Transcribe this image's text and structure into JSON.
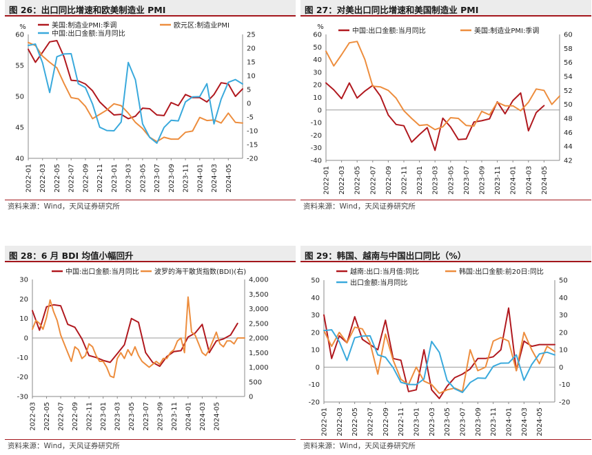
{
  "colors": {
    "dark_red": "#b0181e",
    "orange": "#ed8d3d",
    "blue": "#39a9dc",
    "accent": "#a3151b"
  },
  "panels": [
    {
      "title": "图 26：出口同比增速和欧美制造业 PMI",
      "source": "资料来源：Wind，天风证券研究所"
    },
    {
      "title": "图 27：对美出口同比增速和美国制造业 PMI",
      "source": "资料来源：Wind，天风证券研究所"
    },
    {
      "title": "图 28：6 月 BDI 均值小幅回升",
      "source": "资料来源：Wind，天风证券研究所"
    },
    {
      "title": "图 29：韩国、越南与中国出口同比（%）",
      "source": "资料来源：Wind，天风证券研究所"
    }
  ],
  "chart_data": [
    {
      "type": "line",
      "y_left_unit": "%",
      "y_left_lim": [
        40,
        60
      ],
      "y_left_ticks": [
        "40",
        "45",
        "50",
        "55",
        "60"
      ],
      "y_right_lim": [
        -20,
        25
      ],
      "y_right_ticks": [
        "-20",
        "-15",
        "-10",
        "-5",
        "0",
        "5",
        "10",
        "15",
        "20",
        "25"
      ],
      "x_ticks": [
        "2022-01",
        "2022-03",
        "2022-05",
        "2022-07",
        "2022-09",
        "2022-11",
        "2023-01",
        "2023-03",
        "2023-05",
        "2023-07",
        "2023-09",
        "2023-11",
        "2024-01",
        "2024-03",
        "2024-05"
      ],
      "series": [
        {
          "name": "美国:制造业PMI:季调",
          "color": "dark_red",
          "axis": "left",
          "x": [
            0,
            1,
            2,
            3,
            4,
            5,
            6,
            7,
            8,
            9,
            10,
            11,
            12,
            13,
            14,
            15,
            16,
            17,
            18,
            19,
            20,
            21,
            22,
            23,
            24,
            25,
            26,
            27,
            28,
            29,
            30
          ],
          "y": [
            57.6,
            55.5,
            57.1,
            58.8,
            59.0,
            56.4,
            52.6,
            52.5,
            52.0,
            50.9,
            49.1,
            48.0,
            47.0,
            47.1,
            46.4,
            46.8,
            48.1,
            48.0,
            47.0,
            46.9,
            49.0,
            48.5,
            50.3,
            49.8,
            49.8,
            49.1,
            50.3,
            52.2,
            52.0,
            50.0,
            51.2
          ]
        },
        {
          "name": "欧元区:制造业PMI",
          "color": "orange",
          "axis": "left",
          "x": [
            0,
            1,
            2,
            3,
            4,
            5,
            6,
            7,
            8,
            9,
            10,
            11,
            12,
            13,
            14,
            15,
            16,
            17,
            18,
            19,
            20,
            21,
            22,
            23,
            24,
            25,
            26,
            27,
            28,
            29,
            30
          ],
          "y": [
            58.7,
            58.2,
            56.5,
            55.5,
            54.6,
            52.1,
            49.8,
            49.6,
            48.4,
            46.4,
            47.1,
            47.8,
            48.8,
            48.5,
            47.3,
            45.8,
            44.8,
            43.4,
            42.7,
            43.4,
            43.1,
            43.1,
            44.2,
            44.4,
            46.6,
            46.1,
            46.2,
            45.7,
            47.3,
            45.8,
            45.7
          ]
        },
        {
          "name": "中国:出口金额:当月同比",
          "color": "blue",
          "axis": "right",
          "x": [
            0,
            1,
            2,
            3,
            4,
            5,
            6,
            7,
            8,
            9,
            10,
            11,
            12,
            13,
            14,
            15,
            16,
            17,
            18,
            19,
            20,
            21,
            22,
            23,
            24,
            25,
            26,
            27,
            28,
            29,
            30
          ],
          "y": [
            21.0,
            21.5,
            14.7,
            3.9,
            16.9,
            17.9,
            18.0,
            7.1,
            5.7,
            -0.3,
            -8.7,
            -9.9,
            -10.0,
            -6.8,
            14.8,
            8.5,
            -7.5,
            -12.4,
            -14.5,
            -8.8,
            -6.2,
            -6.4,
            0.5,
            2.3,
            2.4,
            7.1,
            -7.5,
            1.5,
            7.6,
            8.6,
            7.0
          ]
        }
      ]
    },
    {
      "type": "line",
      "y_left_unit": "%",
      "y_left_lim": [
        -40,
        60
      ],
      "y_left_ticks": [
        "-40",
        "-30",
        "-20",
        "-10",
        "0",
        "10",
        "20",
        "30",
        "40",
        "50",
        "60"
      ],
      "y_right_lim": [
        42,
        60
      ],
      "y_right_ticks": [
        "42",
        "44",
        "46",
        "48",
        "50",
        "52",
        "54",
        "56",
        "58",
        "60"
      ],
      "x_ticks": [
        "2022-01",
        "2022-03",
        "2022-05",
        "2022-07",
        "2022-09",
        "2022-11",
        "2023-01",
        "2023-03",
        "2023-05",
        "2023-07",
        "2023-09",
        "2023-11",
        "2024-01",
        "2024-03",
        "2024-05"
      ],
      "series": [
        {
          "name": "中国:出口金额:当月同比",
          "color": "dark_red",
          "axis": "left",
          "x": [
            0,
            1,
            2,
            3,
            4,
            5,
            6,
            7,
            8,
            9,
            10,
            11,
            12,
            13,
            14,
            15,
            16,
            17,
            18,
            19,
            20,
            21,
            22,
            23,
            24,
            25,
            26,
            27,
            28,
            29,
            30
          ],
          "y": [
            21.5,
            16.0,
            9.0,
            21.5,
            9.5,
            15.0,
            19.5,
            11.0,
            -4.0,
            -11.5,
            -12.5,
            -25.5,
            -19.5,
            -14.0,
            -32.0,
            -6.5,
            -13.5,
            -23.5,
            -23.0,
            -9.5,
            -8.5,
            -7.0,
            6.5,
            -3.0,
            7.5,
            13.5,
            -16.5,
            -2.0,
            3.5,
            null,
            null
          ]
        },
        {
          "name": "美国:制造业PMI:季调",
          "color": "orange",
          "axis": "right",
          "x": [
            0,
            1,
            2,
            3,
            4,
            5,
            6,
            7,
            8,
            9,
            10,
            11,
            12,
            13,
            14,
            15,
            16,
            17,
            18,
            19,
            20,
            21,
            22,
            23,
            24,
            25,
            26,
            27,
            28,
            29,
            30
          ],
          "y": [
            57.6,
            55.5,
            57.1,
            58.8,
            59.0,
            56.4,
            52.6,
            52.5,
            52.0,
            50.9,
            49.1,
            48.0,
            47.0,
            47.1,
            46.4,
            46.8,
            48.1,
            48.0,
            47.0,
            46.9,
            49.0,
            48.5,
            50.3,
            49.8,
            49.8,
            49.1,
            50.3,
            52.2,
            52.0,
            50.0,
            51.2
          ]
        }
      ]
    },
    {
      "type": "line",
      "y_left_lim": [
        -30,
        30
      ],
      "y_left_ticks": [
        "-30",
        "-20",
        "-10",
        "0",
        "10",
        "20",
        "30"
      ],
      "y_right_lim": [
        0,
        4000
      ],
      "y_right_ticks": [
        "0",
        "500",
        "1,000",
        "1,500",
        "2,000",
        "2,500",
        "3,000",
        "3,500",
        "4,000"
      ],
      "x_ticks": [
        "2022-03",
        "2022-05",
        "2022-07",
        "2022-09",
        "2022-11",
        "2023-01",
        "2023-03",
        "2023-05",
        "2023-07",
        "2023-09",
        "2023-11",
        "2024-01",
        "2024-03",
        "2024-05"
      ],
      "series": [
        {
          "name": "中国:出口金额:当月同比",
          "color": "dark_red",
          "axis": "left",
          "x": [
            0,
            2,
            4,
            6,
            8,
            10,
            12,
            14,
            16,
            18,
            20,
            22,
            24,
            26,
            28,
            30,
            32,
            34,
            36,
            38,
            40,
            42,
            44,
            46,
            48,
            50,
            52,
            54,
            56,
            58,
            60
          ],
          "y": [
            14.0,
            4.0,
            16.0,
            17.0,
            16.5,
            7.0,
            5.5,
            -0.5,
            -9.0,
            -10.0,
            -11.5,
            -12.5,
            -8.0,
            -3.5,
            10.0,
            8.0,
            -7.5,
            -12.5,
            -14.5,
            -9.5,
            -7.0,
            -6.5,
            0.5,
            2.5,
            7.0,
            -7.5,
            -1.5,
            -0.5,
            1.5,
            7.5,
            null
          ]
        },
        {
          "name": "波罗的海干散货指数(BDI)(右)",
          "color": "orange",
          "axis": "right",
          "x": [
            0,
            1,
            2,
            3,
            4,
            5,
            6,
            7,
            8,
            9,
            10,
            11,
            12,
            13,
            14,
            15,
            16,
            17,
            18,
            19,
            20,
            21,
            22,
            23,
            24,
            25,
            26,
            27,
            28,
            29,
            30,
            31,
            32,
            33,
            34,
            35,
            36,
            37,
            38,
            39,
            40,
            41,
            42,
            43,
            44,
            45,
            46,
            47,
            48,
            49,
            50,
            51,
            52,
            53,
            54,
            55,
            56,
            57,
            58,
            59,
            60
          ],
          "y": [
            2300,
            2600,
            2500,
            2300,
            2700,
            3300,
            2900,
            2600,
            2100,
            1800,
            1500,
            1200,
            1700,
            1600,
            1300,
            1400,
            1800,
            1700,
            1400,
            1200,
            1200,
            1000,
            700,
            650,
            1300,
            1500,
            1300,
            1600,
            1400,
            1700,
            1400,
            1200,
            1100,
            1000,
            1100,
            1200,
            1100,
            1300,
            1300,
            1500,
            1600,
            1900,
            2000,
            1500,
            3400,
            2200,
            2100,
            1800,
            1500,
            1400,
            1600,
            1900,
            2200,
            1800,
            1700,
            1900,
            1900,
            1800,
            2000,
            2000,
            2000
          ]
        }
      ]
    },
    {
      "type": "line",
      "y_left_lim": [
        -20,
        50
      ],
      "y_left_ticks": [
        "-20",
        "-10",
        "0",
        "10",
        "20",
        "30",
        "40",
        "50"
      ],
      "y_right_lim": [
        -20,
        50
      ],
      "y_right_ticks": [
        "-20",
        "-10",
        "0",
        "10",
        "20",
        "30",
        "40",
        "50"
      ],
      "x_ticks": [
        "2022-01",
        "2022-03",
        "2022-05",
        "2022-07",
        "2022-09",
        "2022-11",
        "2023-01",
        "2023-03",
        "2023-05",
        "2023-07",
        "2023-09",
        "2023-11",
        "2024-01",
        "2024-03",
        "2024-05"
      ],
      "series": [
        {
          "name": "越南:出口:当月值:同比",
          "color": "dark_red",
          "axis": "left",
          "x": [
            0,
            1,
            2,
            3,
            4,
            5,
            6,
            7,
            8,
            9,
            10,
            11,
            12,
            13,
            14,
            15,
            16,
            17,
            18,
            19,
            20,
            21,
            22,
            23,
            24,
            25,
            26,
            27,
            28,
            29,
            30
          ],
          "y": [
            30.0,
            5.0,
            18.0,
            14.0,
            29.0,
            16.0,
            13.0,
            10.0,
            27.0,
            5.0,
            4.0,
            -14.0,
            -13.0,
            10.0,
            -13.0,
            -18.0,
            -11.0,
            -6.0,
            -4.0,
            -1.0,
            5.0,
            5.0,
            6.0,
            10.0,
            34.0,
            -2.0,
            15.0,
            12.0,
            13.0,
            13.0,
            13.0
          ]
        },
        {
          "name": "韩国:出口金额:前20日:同比",
          "color": "orange",
          "axis": "left",
          "x": [
            0,
            1,
            2,
            3,
            4,
            5,
            6,
            7,
            8,
            9,
            10,
            11,
            12,
            13,
            14,
            15,
            16,
            17,
            18,
            19,
            20,
            21,
            22,
            23,
            24,
            25,
            26,
            27,
            28,
            29,
            30
          ],
          "y": [
            21.0,
            12.0,
            20.0,
            14.0,
            23.0,
            22.0,
            14.0,
            -4.0,
            19.0,
            4.0,
            -7.0,
            -10.0,
            0.0,
            -8.0,
            -10.0,
            -15.0,
            -13.0,
            -12.0,
            -14.0,
            10.0,
            -2.0,
            0.0,
            15.0,
            17.0,
            15.0,
            -2.0,
            20.0,
            10.0,
            2.0,
            12.0,
            9.0
          ]
        },
        {
          "name": "出口金额:当月同比",
          "color": "blue",
          "axis": "right",
          "x": [
            0,
            1,
            2,
            3,
            4,
            5,
            6,
            7,
            8,
            9,
            10,
            11,
            12,
            13,
            14,
            15,
            16,
            17,
            18,
            19,
            20,
            21,
            22,
            23,
            24,
            25,
            26,
            27,
            28,
            29,
            30
          ],
          "y": [
            21.0,
            21.5,
            14.7,
            3.9,
            16.9,
            17.9,
            18.0,
            7.1,
            5.7,
            -0.3,
            -8.7,
            -9.9,
            -10.0,
            -6.8,
            14.8,
            8.5,
            -7.5,
            -12.4,
            -14.5,
            -8.8,
            -6.2,
            -6.4,
            0.5,
            2.3,
            2.4,
            7.1,
            -7.5,
            1.5,
            7.6,
            8.6,
            7.0
          ]
        }
      ]
    }
  ]
}
